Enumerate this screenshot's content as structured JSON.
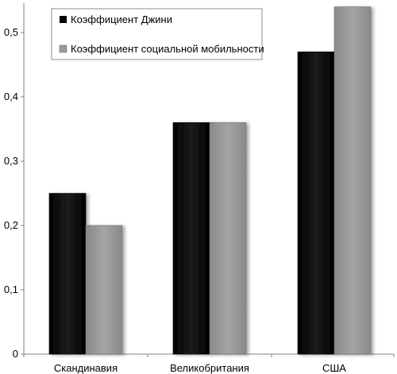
{
  "chart_data": {
    "type": "bar",
    "categories": [
      "Скандинавия",
      "Великобритания",
      "США"
    ],
    "series": [
      {
        "name": "Коэффициент Джини",
        "values": [
          0.25,
          0.36,
          0.47
        ],
        "color": "#0a0a0a"
      },
      {
        "name": "Коэффициент социальной мобильности",
        "values": [
          0.2,
          0.36,
          0.54
        ],
        "color": "#9a9a9a"
      }
    ],
    "yticks": [
      "0",
      "0,1",
      "0,2",
      "0,3",
      "0,4",
      "0,5"
    ],
    "ylim": [
      0,
      0.55
    ],
    "grid": false,
    "legend_position": "top"
  }
}
